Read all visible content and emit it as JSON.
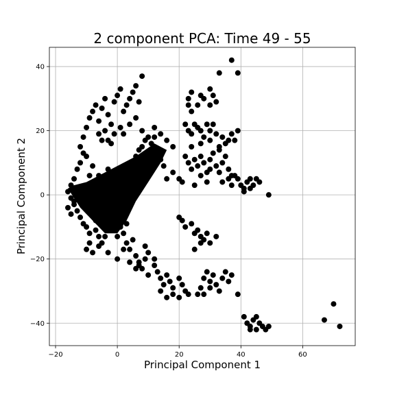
{
  "chart_data": {
    "type": "scatter",
    "title": "2 component PCA: Time 49 - 55",
    "xlabel": "Principal Component 1",
    "ylabel": "Principal Component 2",
    "xlim": [
      -22,
      77
    ],
    "ylim": [
      -47,
      46
    ],
    "xticks": [
      -20,
      0,
      20,
      40,
      60
    ],
    "xtick_labels": [
      "−20",
      "0",
      "20",
      "40",
      "60"
    ],
    "yticks": [
      -40,
      -20,
      0,
      20,
      40
    ],
    "yticks_labels_note": "",
    "ytick_labels": [
      "−40",
      "−20",
      "0",
      "20",
      "40"
    ],
    "grid": true,
    "marker_color": "#000000",
    "series": [
      {
        "points": [
          [
            -16,
            1
          ],
          [
            -15,
            -1
          ],
          [
            -15,
            3
          ],
          [
            -14,
            -3
          ],
          [
            -14,
            5
          ],
          [
            -13,
            -5
          ],
          [
            -13,
            8
          ],
          [
            -12,
            10
          ],
          [
            -12,
            -7
          ],
          [
            -11,
            13
          ],
          [
            -11,
            -9
          ],
          [
            -10,
            12
          ],
          [
            -10,
            -10
          ],
          [
            -9,
            6
          ],
          [
            -9,
            -12
          ],
          [
            -8,
            -2
          ],
          [
            -8,
            9
          ],
          [
            -7,
            3
          ],
          [
            -7,
            -8
          ],
          [
            -6,
            -4
          ],
          [
            -6,
            6
          ],
          [
            -5,
            1
          ],
          [
            -5,
            -9
          ],
          [
            -4,
            4
          ],
          [
            -4,
            -6
          ],
          [
            -3,
            -1
          ],
          [
            -3,
            8
          ],
          [
            -2,
            2
          ],
          [
            -2,
            -4
          ],
          [
            -1,
            5
          ],
          [
            -1,
            -7
          ],
          [
            0,
            0
          ],
          [
            0,
            3
          ],
          [
            0,
            -3
          ],
          [
            1,
            6
          ],
          [
            1,
            -2
          ],
          [
            2,
            9
          ],
          [
            2,
            -5
          ],
          [
            3,
            4
          ],
          [
            3,
            -9
          ],
          [
            4,
            7
          ],
          [
            5,
            10
          ],
          [
            6,
            12
          ],
          [
            7,
            14
          ],
          [
            8,
            15
          ],
          [
            9,
            17
          ],
          [
            10,
            13
          ],
          [
            11,
            16
          ],
          [
            12,
            18
          ],
          [
            13,
            14
          ],
          [
            14,
            11
          ],
          [
            15,
            9
          ],
          [
            16,
            5
          ],
          [
            18,
            7
          ],
          [
            -16,
            -4
          ],
          [
            -15,
            -6
          ],
          [
            -14,
            -2
          ],
          [
            -13,
            0
          ],
          [
            -12,
            2
          ],
          [
            -11,
            -3
          ],
          [
            -10,
            1
          ],
          [
            -9,
            0
          ],
          [
            -8,
            -6
          ],
          [
            -7,
            -11
          ],
          [
            -6,
            -13
          ],
          [
            -5,
            -15
          ],
          [
            -4,
            -13
          ],
          [
            -3,
            -11
          ],
          [
            -2,
            -9
          ],
          [
            -1,
            -11
          ],
          [
            0,
            -13
          ],
          [
            1,
            -10
          ],
          [
            2,
            -12
          ],
          [
            3,
            -15
          ],
          [
            4,
            -17
          ],
          [
            5,
            -14
          ],
          [
            6,
            -19
          ],
          [
            7,
            -21
          ],
          [
            8,
            -23
          ],
          [
            9,
            -16
          ],
          [
            10,
            -18
          ],
          [
            12,
            -20
          ],
          [
            13,
            -24
          ],
          [
            14,
            -26
          ],
          [
            15,
            -28
          ],
          [
            16,
            -25
          ],
          [
            17,
            -27
          ],
          [
            18,
            -29
          ],
          [
            20,
            -26
          ],
          [
            22,
            -30
          ],
          [
            -12,
            15
          ],
          [
            -11,
            18
          ],
          [
            -10,
            21
          ],
          [
            -9,
            24
          ],
          [
            -8,
            26
          ],
          [
            -7,
            28
          ],
          [
            -6,
            23
          ],
          [
            -5,
            27
          ],
          [
            -4,
            30
          ],
          [
            -3,
            25
          ],
          [
            -2,
            22
          ],
          [
            -1,
            29
          ],
          [
            0,
            31
          ],
          [
            1,
            33
          ],
          [
            2,
            26
          ],
          [
            3,
            28
          ],
          [
            4,
            30
          ],
          [
            5,
            32
          ],
          [
            6,
            34
          ],
          [
            7,
            29
          ],
          [
            8,
            37
          ],
          [
            -6,
            19
          ],
          [
            -5,
            17
          ],
          [
            -4,
            20
          ],
          [
            -3,
            17
          ],
          [
            -2,
            16
          ],
          [
            -1,
            19
          ],
          [
            1,
            21
          ],
          [
            2,
            19
          ],
          [
            4,
            22
          ],
          [
            6,
            24
          ],
          [
            8,
            20
          ],
          [
            10,
            18
          ],
          [
            12,
            21
          ],
          [
            14,
            19
          ],
          [
            16,
            17
          ],
          [
            18,
            15
          ],
          [
            -10,
            -17
          ],
          [
            -9,
            -15
          ],
          [
            -8,
            -18
          ],
          [
            -6,
            -16
          ],
          [
            -3,
            -18
          ],
          [
            0,
            -20
          ],
          [
            2,
            -17
          ],
          [
            4,
            -21
          ],
          [
            6,
            -23
          ],
          [
            7,
            -22
          ],
          [
            9,
            -20
          ],
          [
            10,
            -25
          ],
          [
            12,
            -22
          ],
          [
            14,
            -30
          ],
          [
            16,
            -32
          ],
          [
            18,
            -31
          ],
          [
            21,
            -28
          ],
          [
            20,
            -32
          ],
          [
            23,
            -31
          ],
          [
            26,
            -31
          ],
          [
            27,
            -29
          ],
          [
            22,
            22
          ],
          [
            23,
            20
          ],
          [
            24,
            19
          ],
          [
            25,
            22
          ],
          [
            26,
            21
          ],
          [
            27,
            20
          ],
          [
            28,
            18
          ],
          [
            29,
            22
          ],
          [
            30,
            20
          ],
          [
            31,
            22
          ],
          [
            32,
            19
          ],
          [
            33,
            15
          ],
          [
            34,
            18
          ],
          [
            35,
            16
          ],
          [
            36,
            17
          ],
          [
            37,
            19
          ],
          [
            38,
            17
          ],
          [
            39,
            20
          ],
          [
            33,
            14
          ],
          [
            30,
            17
          ],
          [
            27,
            16
          ],
          [
            24,
            15
          ],
          [
            22,
            12
          ],
          [
            23,
            10
          ],
          [
            24,
            8
          ],
          [
            25,
            11
          ],
          [
            26,
            9
          ],
          [
            27,
            12
          ],
          [
            28,
            10
          ],
          [
            29,
            7
          ],
          [
            30,
            11
          ],
          [
            31,
            13
          ],
          [
            32,
            9
          ],
          [
            33,
            7
          ],
          [
            34,
            10
          ],
          [
            35,
            12
          ],
          [
            36,
            8
          ],
          [
            37,
            6
          ],
          [
            20,
            5
          ],
          [
            21,
            4
          ],
          [
            25,
            3
          ],
          [
            27,
            6
          ],
          [
            29,
            4
          ],
          [
            30,
            8
          ],
          [
            34,
            4
          ],
          [
            36,
            5
          ],
          [
            37,
            3
          ],
          [
            38,
            6
          ],
          [
            39,
            5
          ],
          [
            40,
            3
          ],
          [
            41,
            1
          ],
          [
            42,
            4
          ],
          [
            43,
            5
          ],
          [
            44,
            3
          ],
          [
            45,
            5
          ],
          [
            46,
            4
          ],
          [
            41,
            2
          ],
          [
            43,
            2
          ],
          [
            49,
            0
          ],
          [
            23,
            30
          ],
          [
            24,
            32
          ],
          [
            26,
            28
          ],
          [
            27,
            31
          ],
          [
            28,
            30
          ],
          [
            30,
            33
          ],
          [
            31,
            31
          ],
          [
            32,
            29
          ],
          [
            33,
            38
          ],
          [
            23,
            28
          ],
          [
            24,
            26
          ],
          [
            30,
            28
          ],
          [
            20,
            -7
          ],
          [
            21,
            -8
          ],
          [
            22,
            -10
          ],
          [
            24,
            -9
          ],
          [
            25,
            -12
          ],
          [
            26,
            -11
          ],
          [
            27,
            -13
          ],
          [
            28,
            -14
          ],
          [
            29,
            -12
          ],
          [
            30,
            -15
          ],
          [
            32,
            -13
          ],
          [
            25,
            -17
          ],
          [
            27,
            -15
          ],
          [
            28,
            -26
          ],
          [
            29,
            -24
          ],
          [
            30,
            -27
          ],
          [
            31,
            -25
          ],
          [
            32,
            -28
          ],
          [
            33,
            -30
          ],
          [
            34,
            -26
          ],
          [
            35,
            -24
          ],
          [
            36,
            -27
          ],
          [
            37,
            -25
          ],
          [
            30,
            -29
          ],
          [
            28,
            -31
          ],
          [
            39,
            -31
          ],
          [
            39,
            38
          ],
          [
            37,
            42
          ],
          [
            41,
            -38
          ],
          [
            42,
            -40
          ],
          [
            43,
            -41
          ],
          [
            44,
            -39
          ],
          [
            45,
            -42
          ],
          [
            46,
            -40
          ],
          [
            47,
            -41
          ],
          [
            48,
            -42
          ],
          [
            49,
            -41
          ],
          [
            43,
            -42
          ],
          [
            45,
            -38
          ],
          [
            67,
            -39
          ],
          [
            70,
            -34
          ],
          [
            72,
            -41
          ]
        ]
      }
    ]
  }
}
